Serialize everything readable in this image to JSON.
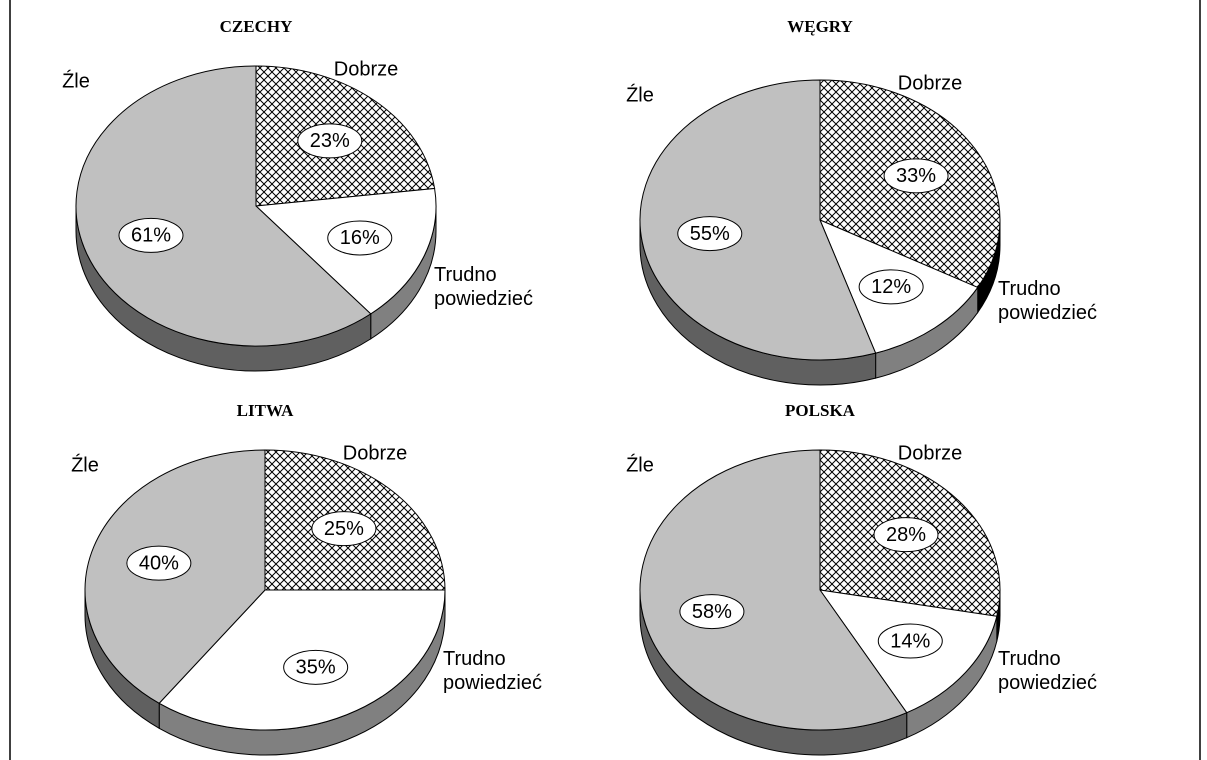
{
  "chart_data": [
    {
      "type": "pie",
      "title": "CZECHY",
      "categories": [
        "Dobrze",
        "Trudno powiedzieć",
        "Źle"
      ],
      "values": [
        23,
        16,
        61
      ],
      "value_labels": [
        "23%",
        "16%",
        "61%"
      ],
      "colors": [
        "hatch",
        "#ffffff",
        "#c0c0c0"
      ]
    },
    {
      "type": "pie",
      "title": "WĘGRY",
      "categories": [
        "Dobrze",
        "Trudno powiedzieć",
        "Źle"
      ],
      "values": [
        33,
        12,
        55
      ],
      "value_labels": [
        "33%",
        "12%",
        "55%"
      ],
      "colors": [
        "hatch",
        "#ffffff",
        "#c0c0c0"
      ]
    },
    {
      "type": "pie",
      "title": "LITWA",
      "categories": [
        "Dobrze",
        "Trudno powiedzieć",
        "Źle"
      ],
      "values": [
        25,
        35,
        40
      ],
      "value_labels": [
        "25%",
        "35%",
        "40%"
      ],
      "colors": [
        "hatch",
        "#ffffff",
        "#c0c0c0"
      ]
    },
    {
      "type": "pie",
      "title": "POLSKA",
      "categories": [
        "Dobrze",
        "Trudno powiedzieć",
        "Źle"
      ],
      "values": [
        28,
        14,
        58
      ],
      "value_labels": [
        "28%",
        "14%",
        "58%"
      ],
      "colors": [
        "hatch",
        "#ffffff",
        "#c0c0c0"
      ]
    }
  ]
}
